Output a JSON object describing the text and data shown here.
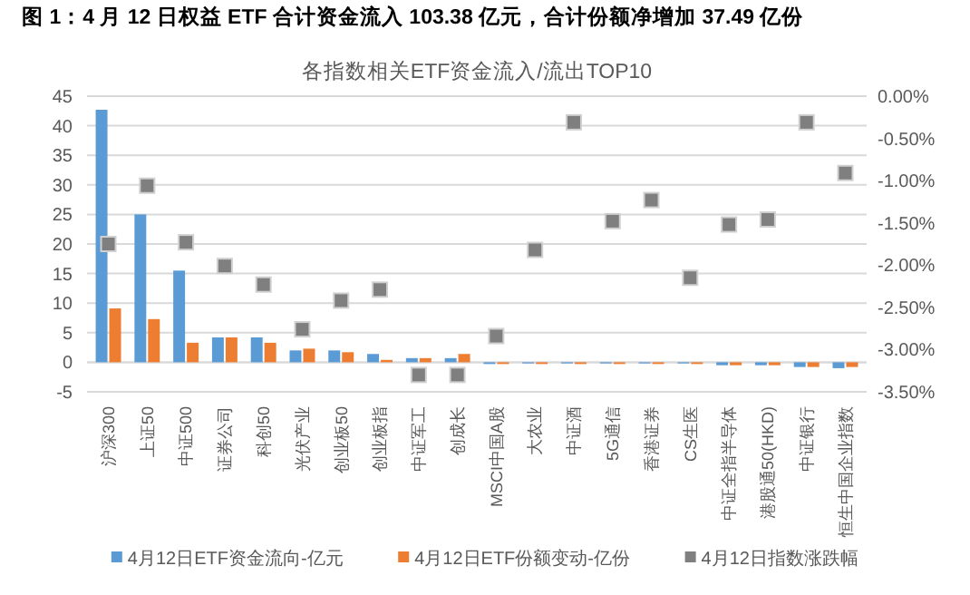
{
  "chart_data": {
    "type": "bar",
    "title": "各指数相关ETF资金流入/流出TOP10",
    "annotations": [
      "图 1：4 月 12 日权益 ETF 合计资金流入 103.38 亿元，合计份额净增加 37.49 亿份"
    ],
    "categories": [
      "沪深300",
      "上证50",
      "中证500",
      "证券公司",
      "科创50",
      "光伏产业",
      "创业板50",
      "创业板指",
      "中证军工",
      "创成长",
      "MSCI中国A股",
      "大农业",
      "中证酒",
      "5G通信",
      "香港证券",
      "CS生医",
      "中证全指半导体",
      "港股通50(HKD)",
      "中证银行",
      "恒生中国企业指数"
    ],
    "series": [
      {
        "name": "4月12日ETF资金流向-亿元",
        "color": "#5b9bd5",
        "values": [
          42.7,
          25,
          15.5,
          4.2,
          4.2,
          2,
          2,
          1.4,
          0.7,
          0.7,
          -0.3,
          -0.2,
          -0.2,
          -0.2,
          -0.2,
          -0.2,
          -0.5,
          -0.5,
          -0.8,
          -1.0
        ]
      },
      {
        "name": "4月12日ETF份额变动-亿份",
        "color": "#ed7d31",
        "values": [
          9.1,
          7.3,
          3.3,
          4.2,
          3.3,
          2.3,
          1.7,
          0.4,
          0.7,
          1.4,
          -0.3,
          -0.3,
          -0.3,
          -0.3,
          -0.3,
          -0.3,
          -0.5,
          -0.5,
          -0.8,
          -0.8
        ]
      },
      {
        "name": "4月12日指数涨跌幅",
        "type": "scatter",
        "axis": "y2",
        "marker": "square",
        "color": "#7f7f7f",
        "values": [
          -1.75,
          -1.06,
          -1.73,
          -2.01,
          -2.23,
          -2.76,
          -2.42,
          -2.29,
          -3.3,
          -3.3,
          -2.84,
          -1.82,
          -0.31,
          -1.48,
          -1.23,
          -2.15,
          -1.52,
          -1.46,
          -0.31,
          -0.91
        ]
      }
    ],
    "ylim": [
      -5,
      45
    ],
    "yticks": [
      -5,
      0,
      5,
      10,
      15,
      20,
      25,
      30,
      35,
      40,
      45
    ],
    "y2lim": [
      -3.5,
      0
    ],
    "y2ticks": [
      {
        "value": -3.5,
        "label": "-3.50%"
      },
      {
        "value": -3,
        "label": "-3.00%"
      },
      {
        "value": -2.5,
        "label": "-2.50%"
      },
      {
        "value": -2,
        "label": "-2.00%"
      },
      {
        "value": -1.5,
        "label": "-1.50%"
      },
      {
        "value": -1,
        "label": "-1.00%"
      },
      {
        "value": -0.5,
        "label": "-0.50%"
      },
      {
        "value": 0,
        "label": "0.00%"
      }
    ],
    "grid": "y",
    "legend": "bottom"
  }
}
